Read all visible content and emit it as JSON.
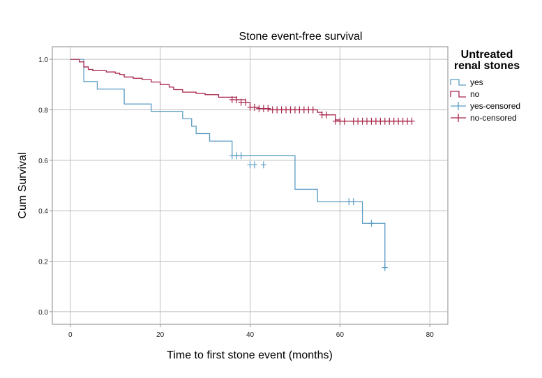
{
  "chart_data": {
    "type": "line",
    "title": "Stone event-free survival",
    "xlabel": "Time to first stone event (months)",
    "ylabel": "Cum Survival",
    "xlim": [
      -4,
      84
    ],
    "ylim": [
      -0.05,
      1.05
    ],
    "x_ticks": [
      0,
      20,
      40,
      60,
      80
    ],
    "y_ticks": [
      0.0,
      0.2,
      0.4,
      0.6,
      0.8,
      1.0
    ],
    "y_tick_labels": [
      "0.0",
      "0.2",
      "0.4",
      "0.6",
      "0.8",
      "1.0"
    ],
    "grid": true,
    "legend": {
      "title_lines": [
        "Untreated",
        "renal stones"
      ],
      "position": "right",
      "entries": [
        "yes",
        "no",
        "yes-censored",
        "no-censored"
      ]
    },
    "series": [
      {
        "name": "yes",
        "color": "#5b9cc4",
        "steps": [
          [
            0,
            1.0
          ],
          [
            3,
            0.912
          ],
          [
            6,
            0.882
          ],
          [
            12,
            0.823
          ],
          [
            18,
            0.794
          ],
          [
            25,
            0.765
          ],
          [
            27,
            0.735
          ],
          [
            28,
            0.706
          ],
          [
            31,
            0.676
          ],
          [
            36,
            0.618
          ],
          [
            50,
            0.485
          ],
          [
            55,
            0.436
          ],
          [
            65,
            0.35
          ],
          [
            70,
            0.175
          ]
        ],
        "end_x": 70,
        "censored": [
          [
            36,
            0.618
          ],
          [
            37,
            0.618
          ],
          [
            38,
            0.618
          ],
          [
            40,
            0.582
          ],
          [
            41,
            0.582
          ],
          [
            43,
            0.582
          ],
          [
            62,
            0.436
          ],
          [
            63,
            0.436
          ],
          [
            67,
            0.35
          ],
          [
            70,
            0.175
          ]
        ]
      },
      {
        "name": "no",
        "color": "#a8254a",
        "steps": [
          [
            0,
            1.0
          ],
          [
            2,
            0.99
          ],
          [
            3,
            0.97
          ],
          [
            4,
            0.96
          ],
          [
            5,
            0.955
          ],
          [
            8,
            0.95
          ],
          [
            10,
            0.945
          ],
          [
            11,
            0.94
          ],
          [
            12,
            0.93
          ],
          [
            14,
            0.925
          ],
          [
            16,
            0.92
          ],
          [
            18,
            0.91
          ],
          [
            20,
            0.9
          ],
          [
            22,
            0.89
          ],
          [
            23,
            0.88
          ],
          [
            25,
            0.87
          ],
          [
            28,
            0.865
          ],
          [
            30,
            0.86
          ],
          [
            33,
            0.85
          ],
          [
            37,
            0.84
          ],
          [
            39,
            0.83
          ],
          [
            40,
            0.81
          ],
          [
            42,
            0.805
          ],
          [
            44,
            0.8
          ],
          [
            55,
            0.79
          ],
          [
            56,
            0.78
          ],
          [
            59,
            0.76
          ],
          [
            60,
            0.755
          ]
        ],
        "end_x": 76,
        "censored": [
          [
            36,
            0.84
          ],
          [
            37,
            0.84
          ],
          [
            38,
            0.83
          ],
          [
            39,
            0.83
          ],
          [
            40,
            0.81
          ],
          [
            41,
            0.81
          ],
          [
            42,
            0.805
          ],
          [
            43,
            0.805
          ],
          [
            44,
            0.805
          ],
          [
            45,
            0.8
          ],
          [
            46,
            0.8
          ],
          [
            47,
            0.8
          ],
          [
            48,
            0.8
          ],
          [
            49,
            0.8
          ],
          [
            50,
            0.8
          ],
          [
            51,
            0.8
          ],
          [
            52,
            0.8
          ],
          [
            53,
            0.8
          ],
          [
            54,
            0.8
          ],
          [
            56,
            0.78
          ],
          [
            57,
            0.78
          ],
          [
            59,
            0.755
          ],
          [
            60,
            0.755
          ],
          [
            61,
            0.755
          ],
          [
            63,
            0.755
          ],
          [
            64,
            0.755
          ],
          [
            65,
            0.755
          ],
          [
            66,
            0.755
          ],
          [
            67,
            0.755
          ],
          [
            68,
            0.755
          ],
          [
            69,
            0.755
          ],
          [
            70,
            0.755
          ],
          [
            71,
            0.755
          ],
          [
            72,
            0.755
          ],
          [
            73,
            0.755
          ],
          [
            74,
            0.755
          ],
          [
            75,
            0.755
          ],
          [
            76,
            0.755
          ]
        ]
      }
    ]
  }
}
